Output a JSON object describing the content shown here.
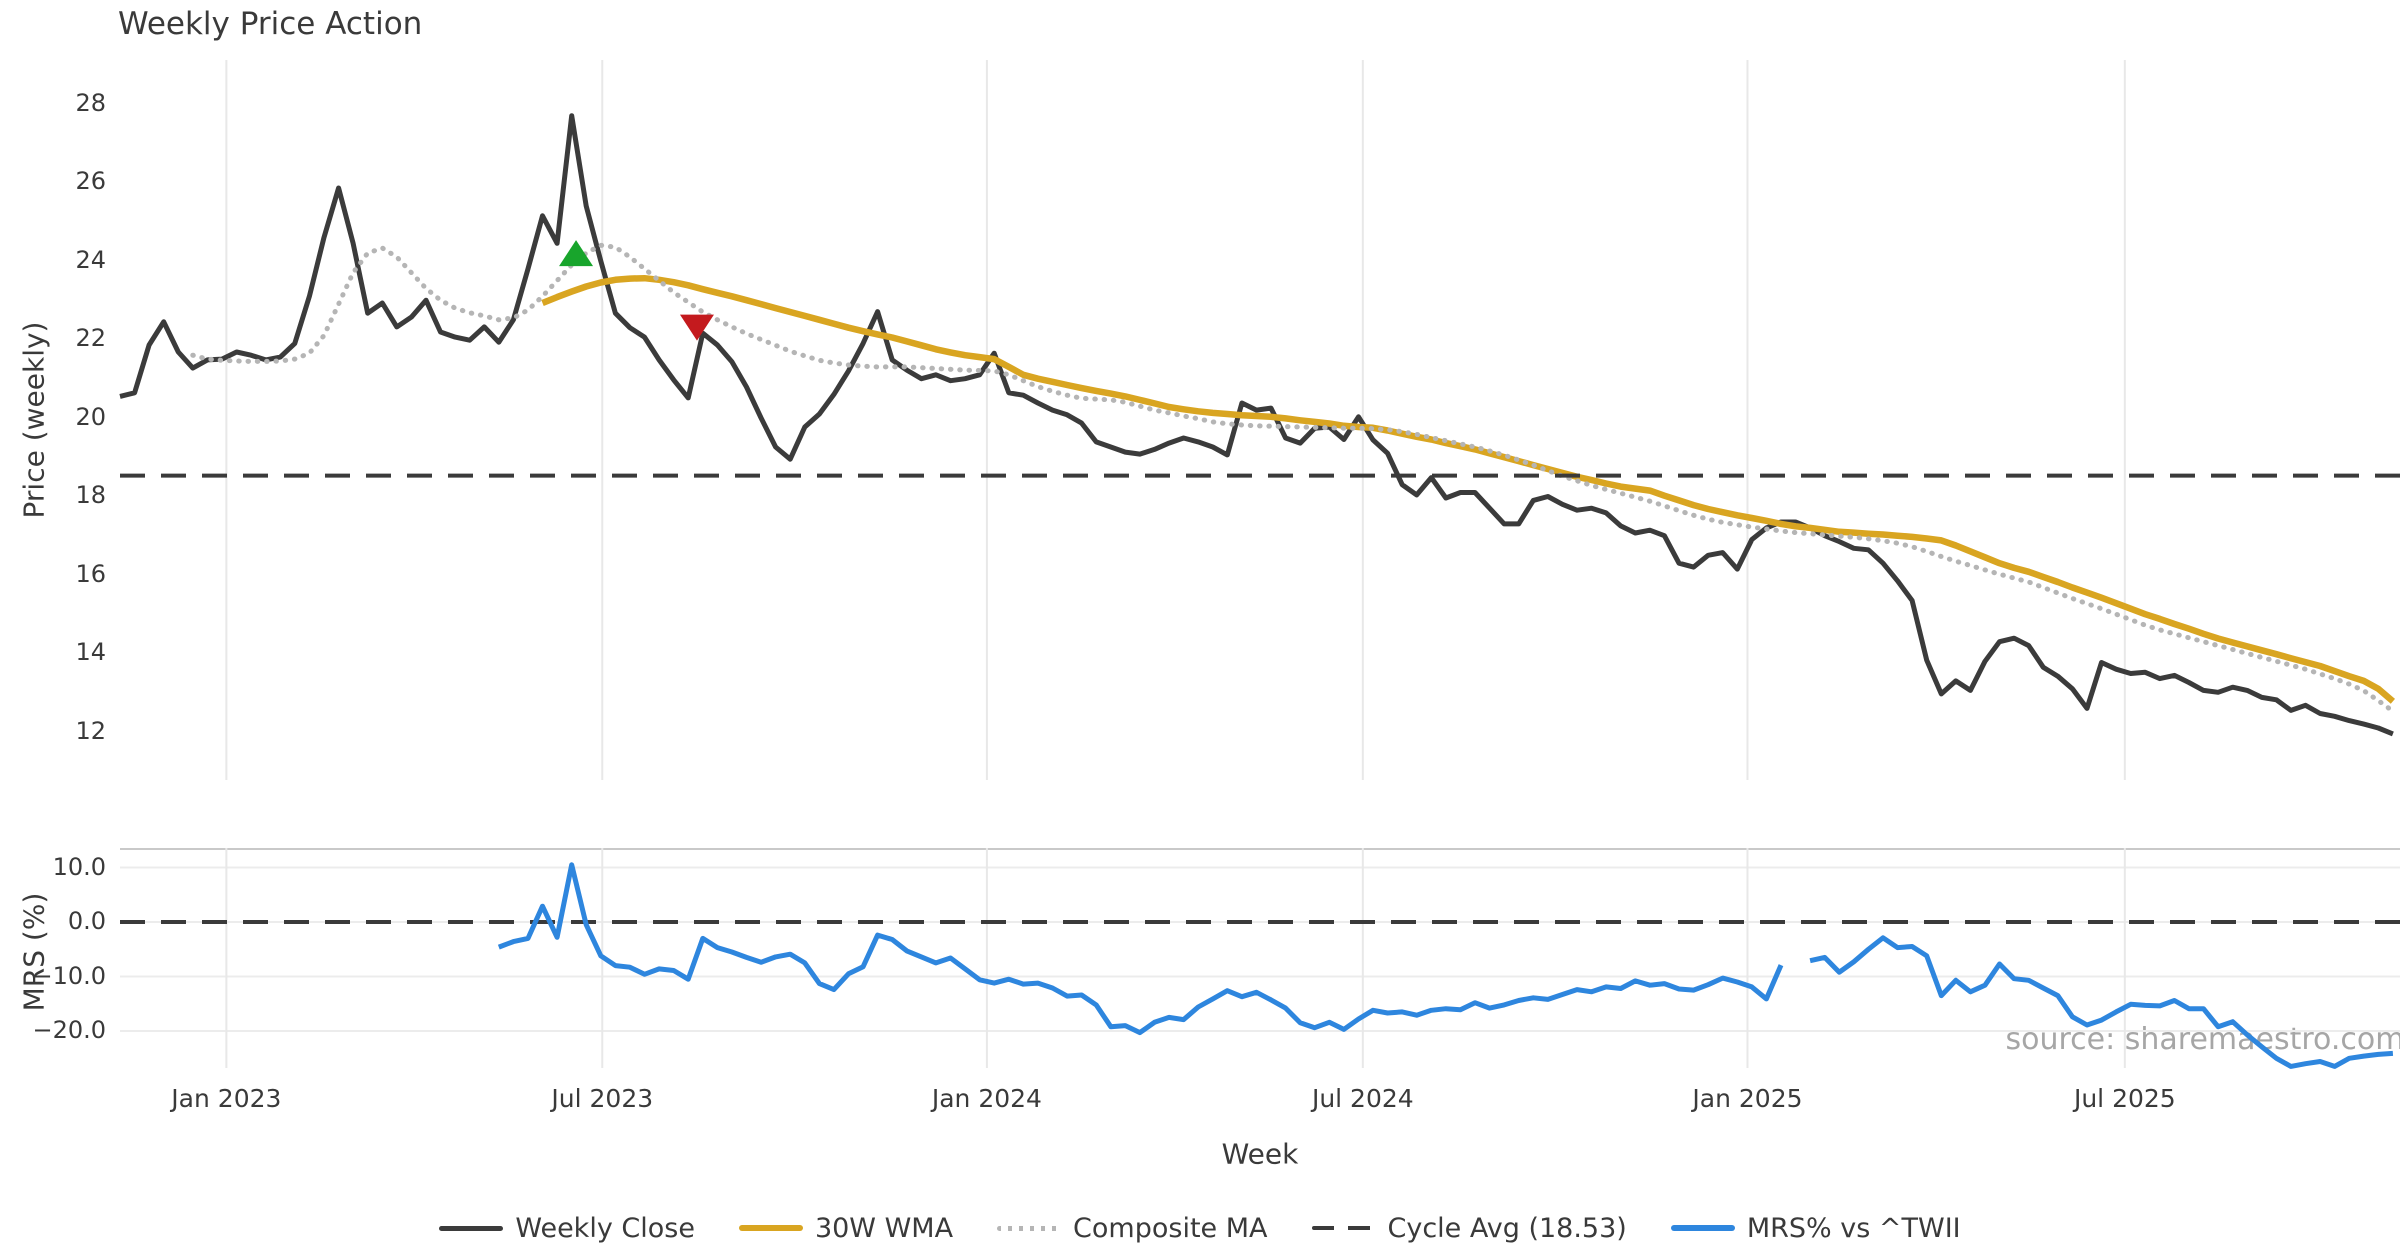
{
  "title": "Weekly Price Action",
  "watermark": "source: sharemaestro.com",
  "colors": {
    "close": "#3b3b3b",
    "wma": "#d9a521",
    "composite": "#b5b5b5",
    "cycle": "#3a3a3a",
    "mrs": "#2e86de",
    "buy_marker": "#18a52c",
    "sell_marker": "#c41a1e",
    "grid_v": "#e8e8e8",
    "grid_h": "#ececec",
    "spine": "#c9c9c9",
    "text": "#3a3a3a"
  },
  "legend": [
    {
      "label": "Weekly Close",
      "style": "solid",
      "color": "#3b3b3b",
      "thickness": 5
    },
    {
      "label": "30W WMA",
      "style": "solid",
      "color": "#d9a521",
      "thickness": 6
    },
    {
      "label": "Composite MA",
      "style": "dotted",
      "color": "#b5b5b5",
      "thickness": 5
    },
    {
      "label": "Cycle Avg (18.53)",
      "style": "dashed",
      "color": "#3a3a3a",
      "thickness": 4
    },
    {
      "label": "MRS% vs ^TWII",
      "style": "solid",
      "color": "#2e86de",
      "thickness": 6
    }
  ],
  "chart_data": {
    "type": "line",
    "xlabel": "Week",
    "n_weeks": 157,
    "xticks": [
      {
        "week": 7.3,
        "label": "Jan 2023"
      },
      {
        "week": 33.1,
        "label": "Jul 2023"
      },
      {
        "week": 59.5,
        "label": "Jan 2024"
      },
      {
        "week": 85.3,
        "label": "Jul 2024"
      },
      {
        "week": 111.7,
        "label": "Jan 2025"
      },
      {
        "week": 137.6,
        "label": "Jul 2025"
      }
    ],
    "panels": [
      {
        "name": "price",
        "ylabel": "Price (weekly)",
        "ylim": [
          10.8,
          29.1
        ],
        "yticks": [
          28,
          26,
          24,
          22,
          20,
          18,
          16,
          14,
          12
        ],
        "cycle_avg": 18.53,
        "markers": [
          {
            "type": "buy-triangle-up",
            "week": 31.3,
            "price": 24.2
          },
          {
            "type": "sell-triangle-down",
            "week": 39.6,
            "price": 22.3
          }
        ],
        "series": [
          {
            "name": "Weekly Close",
            "key": "close",
            "values": [
              20.55,
              20.64,
              21.86,
              22.45,
              21.68,
              21.27,
              21.48,
              21.5,
              21.68,
              21.6,
              21.48,
              21.55,
              21.9,
              23.1,
              24.6,
              25.86,
              24.45,
              22.67,
              22.93,
              22.32,
              22.57,
              23.0,
              22.19,
              22.06,
              21.98,
              22.32,
              21.93,
              22.5,
              23.8,
              25.15,
              24.45,
              27.7,
              25.4,
              24.0,
              22.67,
              22.3,
              22.06,
              21.48,
              20.97,
              20.51,
              22.16,
              21.86,
              21.43,
              20.79,
              20.0,
              19.26,
              18.95,
              19.77,
              20.1,
              20.6,
              21.2,
              21.9,
              22.71,
              21.48,
              21.22,
              21.0,
              21.1,
              20.95,
              21.0,
              21.1,
              21.65,
              20.64,
              20.58,
              20.38,
              20.2,
              20.08,
              19.87,
              19.39,
              19.26,
              19.13,
              19.08,
              19.2,
              19.36,
              19.49,
              19.39,
              19.26,
              19.06,
              20.38,
              20.2,
              20.25,
              19.49,
              19.36,
              19.74,
              19.77,
              19.45,
              20.03,
              19.44,
              19.1,
              18.3,
              18.04,
              18.48,
              17.96,
              18.1,
              18.1,
              17.7,
              17.3,
              17.3,
              17.9,
              18.0,
              17.8,
              17.65,
              17.7,
              17.58,
              17.25,
              17.07,
              17.14,
              17.0,
              16.3,
              16.2,
              16.5,
              16.57,
              16.15,
              16.9,
              17.2,
              17.35,
              17.35,
              17.2,
              17.0,
              16.85,
              16.68,
              16.64,
              16.3,
              15.85,
              15.35,
              13.83,
              12.97,
              13.3,
              13.06,
              13.8,
              14.3,
              14.39,
              14.2,
              13.65,
              13.42,
              13.1,
              12.6,
              13.77,
              13.6,
              13.49,
              13.52,
              13.36,
              13.44,
              13.26,
              13.06,
              13.01,
              13.14,
              13.06,
              12.88,
              12.82,
              12.55,
              12.68,
              12.47,
              12.4,
              12.29,
              12.2,
              12.1,
              11.95
            ]
          },
          {
            "name": "30W WMA",
            "key": "wma",
            "values": [
              null,
              null,
              null,
              null,
              null,
              null,
              null,
              null,
              null,
              null,
              null,
              null,
              null,
              null,
              null,
              null,
              null,
              null,
              null,
              null,
              null,
              null,
              null,
              null,
              null,
              null,
              null,
              null,
              null,
              22.93,
              23.08,
              23.22,
              23.35,
              23.45,
              23.52,
              23.55,
              23.56,
              23.52,
              23.46,
              23.38,
              23.28,
              23.19,
              23.1,
              23.0,
              22.9,
              22.8,
              22.7,
              22.6,
              22.5,
              22.4,
              22.3,
              22.21,
              22.13,
              22.05,
              21.95,
              21.85,
              21.75,
              21.67,
              21.6,
              21.55,
              21.5,
              21.3,
              21.1,
              21.0,
              20.92,
              20.84,
              20.76,
              20.69,
              20.62,
              20.55,
              20.46,
              20.37,
              20.28,
              20.22,
              20.17,
              20.13,
              20.1,
              20.07,
              20.05,
              20.03,
              19.99,
              19.94,
              19.9,
              19.86,
              19.8,
              19.77,
              19.75,
              19.68,
              19.6,
              19.52,
              19.45,
              19.36,
              19.28,
              19.2,
              19.1,
              19.0,
              18.9,
              18.8,
              18.7,
              18.6,
              18.5,
              18.42,
              18.33,
              18.25,
              18.2,
              18.15,
              18.02,
              17.9,
              17.78,
              17.68,
              17.6,
              17.52,
              17.45,
              17.38,
              17.3,
              17.24,
              17.2,
              17.15,
              17.1,
              17.08,
              17.05,
              17.03,
              17.0,
              16.97,
              16.93,
              16.88,
              16.75,
              16.6,
              16.45,
              16.3,
              16.18,
              16.08,
              15.95,
              15.82,
              15.68,
              15.55,
              15.42,
              15.28,
              15.14,
              15.0,
              14.88,
              14.75,
              14.63,
              14.5,
              14.38,
              14.28,
              14.18,
              14.08,
              13.98,
              13.88,
              13.78,
              13.68,
              13.55,
              13.42,
              13.3,
              13.1,
              12.78
            ]
          },
          {
            "name": "Composite MA",
            "key": "composite",
            "values": [
              null,
              null,
              null,
              null,
              null,
              21.6,
              21.5,
              21.47,
              21.45,
              21.44,
              21.44,
              21.45,
              21.5,
              21.65,
              22.1,
              22.9,
              23.7,
              24.2,
              24.33,
              24.1,
              23.7,
              23.3,
              23.0,
              22.8,
              22.68,
              22.6,
              22.5,
              22.55,
              22.75,
              23.1,
              23.5,
              23.9,
              24.2,
              24.4,
              24.35,
              24.1,
              23.8,
              23.5,
              23.2,
              22.95,
              22.7,
              22.5,
              22.32,
              22.15,
              22.0,
              21.85,
              21.7,
              21.58,
              21.47,
              21.4,
              21.35,
              21.32,
              21.3,
              21.3,
              21.3,
              21.28,
              21.26,
              21.24,
              21.22,
              21.21,
              21.2,
              21.1,
              20.95,
              20.8,
              20.68,
              20.58,
              20.5,
              20.48,
              20.46,
              20.4,
              20.3,
              20.2,
              20.13,
              20.05,
              19.98,
              19.9,
              19.85,
              19.82,
              19.8,
              19.79,
              19.78,
              19.77,
              19.76,
              19.75,
              19.74,
              19.74,
              19.73,
              19.7,
              19.65,
              19.58,
              19.5,
              19.42,
              19.34,
              19.26,
              19.16,
              19.05,
              18.93,
              18.8,
              18.66,
              18.52,
              18.4,
              18.28,
              18.18,
              18.08,
              17.98,
              17.88,
              17.76,
              17.64,
              17.52,
              17.42,
              17.34,
              17.28,
              17.22,
              17.17,
              17.12,
              17.08,
              17.05,
              17.02,
              16.99,
              16.96,
              16.92,
              16.87,
              16.81,
              16.72,
              16.6,
              16.47,
              16.35,
              16.24,
              16.13,
              16.02,
              15.92,
              15.82,
              15.68,
              15.54,
              15.4,
              15.27,
              15.14,
              15.0,
              14.86,
              14.72,
              14.6,
              14.5,
              14.4,
              14.3,
              14.2,
              14.1,
              14.0,
              13.9,
              13.8,
              13.7,
              13.6,
              13.48,
              13.36,
              13.22,
              13.05,
              12.8,
              12.53
            ]
          }
        ]
      },
      {
        "name": "mrs",
        "ylabel": "MRS (%)",
        "ylim": [
          -26.6,
          13.6
        ],
        "yticks": [
          10.0,
          0.0,
          -10.0,
          -20.0
        ],
        "zero_line": 0.0,
        "series": [
          {
            "name": "MRS% vs ^TWII",
            "key": "mrs",
            "values": [
              null,
              null,
              null,
              null,
              null,
              null,
              null,
              null,
              null,
              null,
              null,
              null,
              null,
              null,
              null,
              null,
              null,
              null,
              null,
              null,
              null,
              null,
              null,
              null,
              null,
              null,
              -4.6,
              -3.6,
              -3.0,
              2.9,
              -2.8,
              10.5,
              -0.5,
              -6.2,
              -8.0,
              -8.3,
              -9.6,
              -8.6,
              -8.9,
              -10.5,
              -3.0,
              -4.7,
              -5.5,
              -6.5,
              -7.4,
              -6.4,
              -5.9,
              -7.5,
              -11.3,
              -12.4,
              -9.5,
              -8.2,
              -2.4,
              -3.2,
              -5.3,
              -6.4,
              -7.5,
              -6.6,
              -8.6,
              -10.6,
              -11.2,
              -10.5,
              -11.4,
              -11.2,
              -12.1,
              -13.6,
              -13.4,
              -15.2,
              -19.2,
              -19.0,
              -20.3,
              -18.4,
              -17.5,
              -17.9,
              -15.6,
              -14.1,
              -12.6,
              -13.7,
              -12.9,
              -14.3,
              -15.8,
              -18.5,
              -19.4,
              -18.4,
              -19.7,
              -17.8,
              -16.2,
              -16.7,
              -16.5,
              -17.1,
              -16.2,
              -15.9,
              -16.1,
              -14.8,
              -15.8,
              -15.2,
              -14.4,
              -13.9,
              -14.2,
              -13.3,
              -12.4,
              -12.8,
              -11.9,
              -12.2,
              -10.8,
              -11.6,
              -11.3,
              -12.3,
              -12.5,
              -11.5,
              -10.3,
              -11.0,
              -11.9,
              -14.1,
              -7.9,
              null,
              -7.1,
              -6.5,
              -9.2,
              -7.3,
              -5.0,
              -2.9,
              -4.7,
              -4.5,
              -6.2,
              -13.5,
              -10.7,
              -12.8,
              -11.6,
              -7.7,
              -10.4,
              -10.7,
              -12.1,
              -13.5,
              -17.4,
              -18.9,
              -18.0,
              -16.5,
              -15.1,
              -15.3,
              -15.4,
              -14.4,
              -15.9,
              -15.9,
              -19.2,
              -18.3,
              -20.7,
              -22.9,
              -25.0,
              -26.5,
              -26.0,
              -25.6,
              -26.5,
              -25.0,
              -24.6,
              -24.3,
              -24.1
            ]
          }
        ]
      }
    ]
  }
}
